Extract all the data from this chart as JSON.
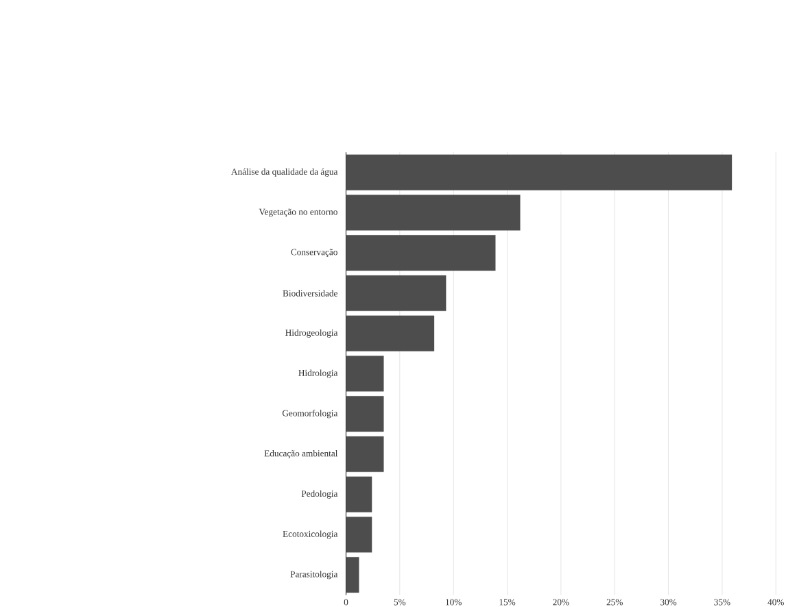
{
  "chart_data": {
    "type": "bar",
    "orientation": "horizontal",
    "categories": [
      "Análise da qualidade da água",
      "Vegetação no entorno",
      "Conservação",
      "Biodiversidade",
      "Hidrogeologia",
      "Hidrologia",
      "Geomorfologia",
      "Educação ambiental",
      "Pedologia",
      "Ecotoxicologia",
      "Parasitologia"
    ],
    "values": [
      35.9,
      16.2,
      13.9,
      9.3,
      8.2,
      3.5,
      3.5,
      3.5,
      2.4,
      2.4,
      1.2
    ],
    "color": "#4d4d4d",
    "xlim": [
      0,
      40
    ],
    "xticks": [
      0,
      {
        "value": 5,
        "label": "5%"
      },
      {
        "value": 10,
        "label": "10%"
      },
      {
        "value": 15,
        "label": "15%"
      },
      {
        "value": 20,
        "label": "20%"
      },
      {
        "value": 25,
        "label": "25%"
      },
      {
        "value": 30,
        "label": "30%"
      },
      {
        "value": 35,
        "label": "35%"
      },
      {
        "value": 40,
        "label": "40%"
      }
    ],
    "grid": "x"
  }
}
